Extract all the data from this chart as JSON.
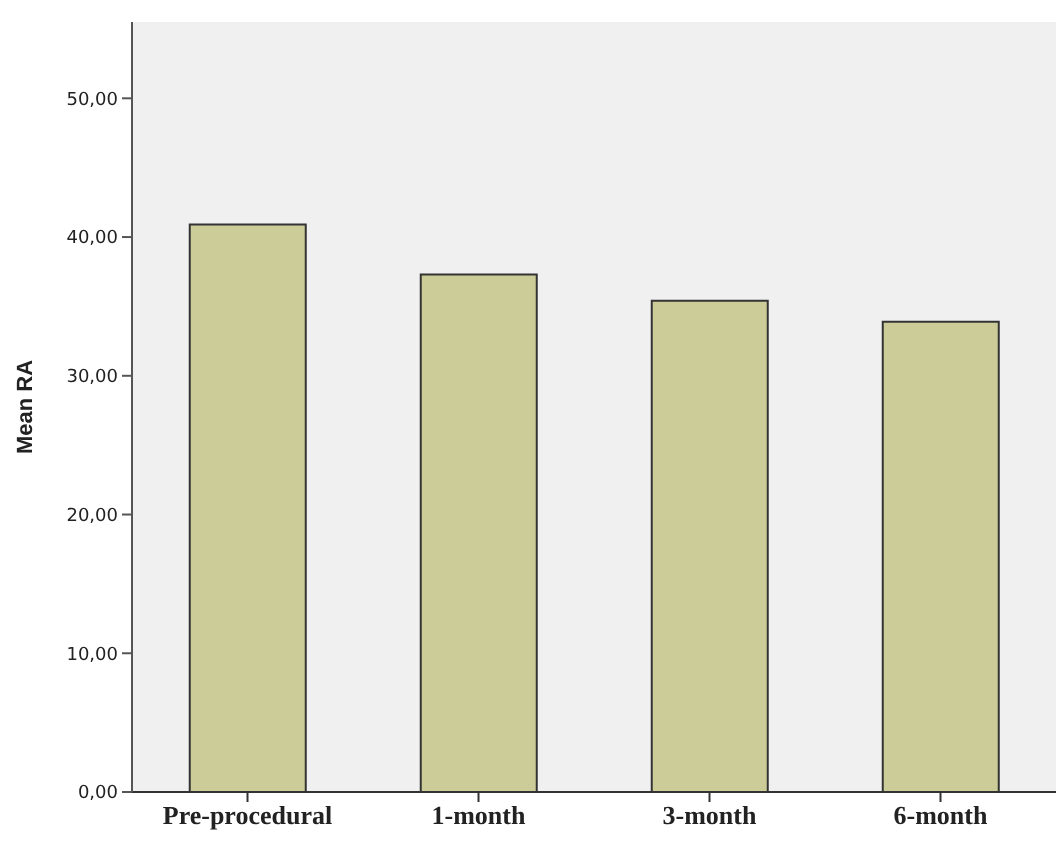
{
  "chart_data": {
    "type": "bar",
    "ylabel": "Mean RA",
    "categories": [
      "Pre-procedural",
      "1-month",
      "3-month",
      "6-month"
    ],
    "values": [
      40.9,
      37.3,
      35.4,
      33.9
    ],
    "color": "#cccc99",
    "ylim": [
      0,
      55.5
    ],
    "yticks": [
      {
        "value": 0,
        "label": "0,00"
      },
      {
        "value": 10,
        "label": "10,00"
      },
      {
        "value": 20,
        "label": "20,00"
      },
      {
        "value": 30,
        "label": "30,00"
      },
      {
        "value": 40,
        "label": "40,00"
      },
      {
        "value": 50,
        "label": "50,00"
      }
    ],
    "grid": false
  }
}
